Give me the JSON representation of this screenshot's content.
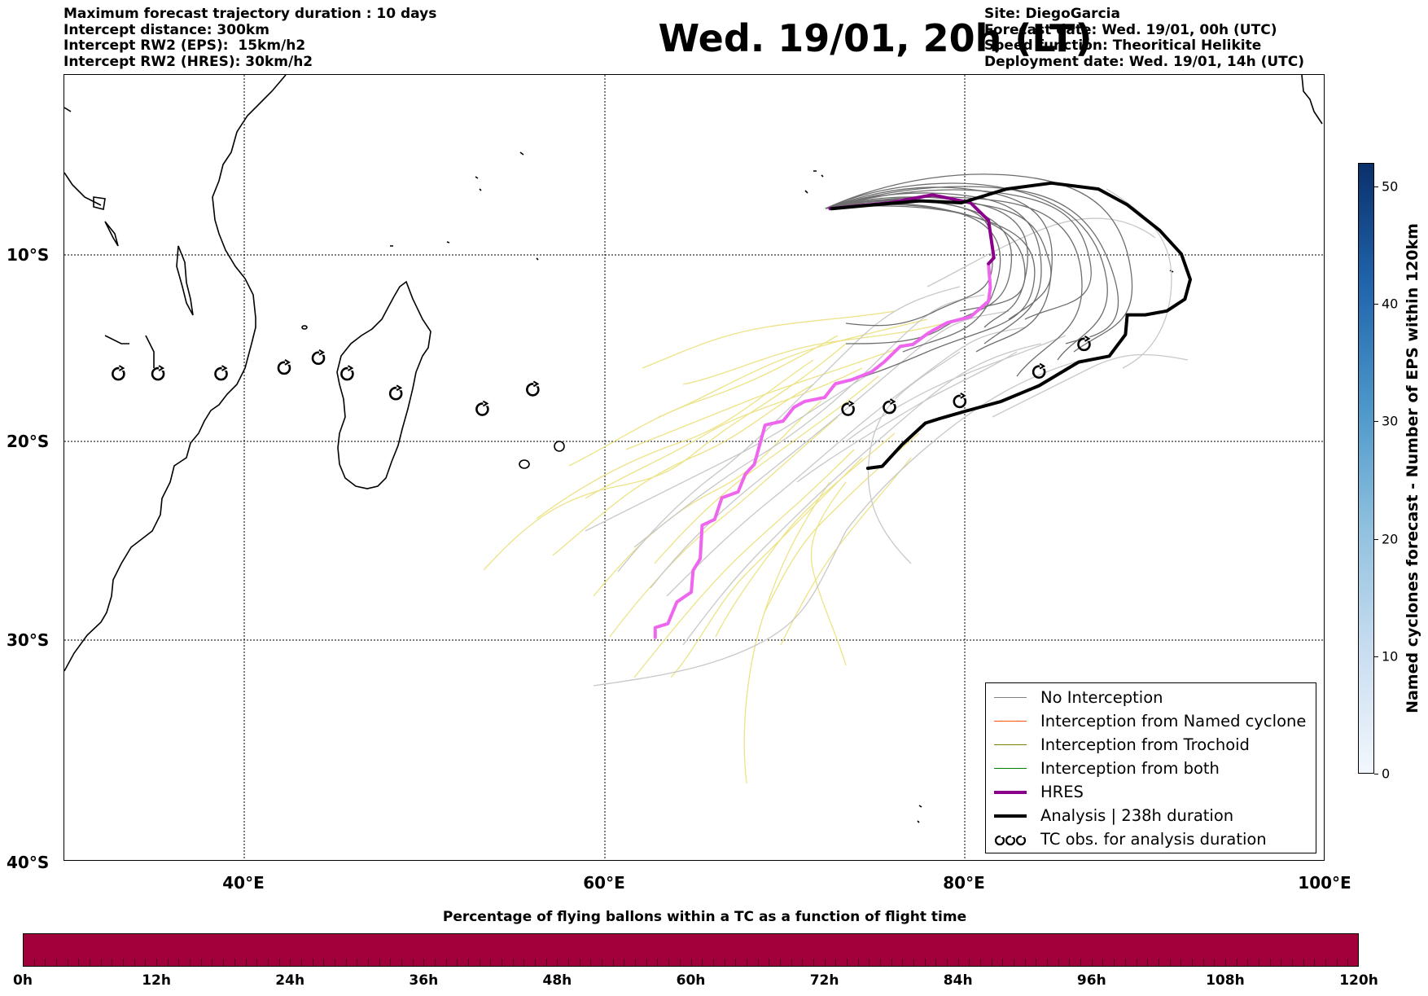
{
  "header": {
    "left_lines": [
      "Maximum forecast trajectory duration : 10 days",
      "Intercept distance: 300km",
      "Intercept RW2 (EPS):  15km/h2",
      "Intercept RW2 (HRES): 30km/h2"
    ],
    "title": "Wed. 19/01, 20h (LT)",
    "right_lines": [
      "Site: DiegoGarcia",
      "Forecast date: Wed. 19/01, 00h (UTC)",
      "Speed function: Theoritical Helikite",
      "Deployment date: Wed. 19/01, 14h (UTC)"
    ]
  },
  "map": {
    "extent": {
      "lon_min": 30,
      "lon_max": 100,
      "lat_min": -40,
      "lat_max": 0
    },
    "lat_labels": [
      "10°S",
      "20°S",
      "30°S",
      "40°S"
    ],
    "lon_labels": [
      "40°E",
      "60°E",
      "80°E",
      "100°E"
    ],
    "tc_observations": [
      {
        "lon": 33.0,
        "lat": -15.2
      },
      {
        "lon": 35.2,
        "lat": -15.2
      },
      {
        "lon": 38.7,
        "lat": -15.2
      },
      {
        "lon": 42.2,
        "lat": -14.9
      },
      {
        "lon": 44.1,
        "lat": -14.4
      },
      {
        "lon": 45.7,
        "lat": -15.2
      },
      {
        "lon": 48.4,
        "lat": -16.2
      },
      {
        "lon": 53.2,
        "lat": -17.0
      },
      {
        "lon": 56.0,
        "lat": -16.0
      },
      {
        "lon": 73.5,
        "lat": -17.0
      },
      {
        "lon": 75.8,
        "lat": -16.9
      },
      {
        "lon": 79.7,
        "lat": -16.6
      },
      {
        "lon": 84.1,
        "lat": -15.1
      },
      {
        "lon": 86.6,
        "lat": -13.7
      }
    ],
    "hres_track": [
      [
        62.8,
        -28.6
      ],
      [
        62.8,
        -28.1
      ],
      [
        63.5,
        -27.9
      ],
      [
        64.0,
        -26.8
      ],
      [
        64.8,
        -26.3
      ],
      [
        64.9,
        -25.2
      ],
      [
        65.3,
        -24.6
      ],
      [
        65.4,
        -22.9
      ],
      [
        66.1,
        -22.6
      ],
      [
        66.5,
        -21.5
      ],
      [
        67.4,
        -21.2
      ],
      [
        67.8,
        -20.3
      ],
      [
        68.3,
        -19.8
      ],
      [
        68.9,
        -17.8
      ],
      [
        69.9,
        -17.6
      ],
      [
        70.5,
        -16.9
      ],
      [
        71.1,
        -16.6
      ],
      [
        72.2,
        -16.4
      ],
      [
        72.8,
        -15.7
      ],
      [
        73.7,
        -15.5
      ],
      [
        74.8,
        -15.1
      ],
      [
        75.5,
        -14.6
      ],
      [
        76.4,
        -13.8
      ],
      [
        77.1,
        -13.7
      ],
      [
        78.0,
        -13.1
      ],
      [
        79.0,
        -12.6
      ],
      [
        80.3,
        -12.3
      ],
      [
        81.3,
        -11.5
      ],
      [
        81.4,
        -10.8
      ],
      [
        81.3,
        -9.6
      ],
      [
        81.6,
        -9.3
      ],
      [
        81.3,
        -7.4
      ],
      [
        80.3,
        -6.5
      ],
      [
        78.2,
        -6.1
      ],
      [
        75.8,
        -6.5
      ],
      [
        72.5,
        -6.8
      ]
    ],
    "analysis_track": [
      [
        74.6,
        -20.0
      ],
      [
        75.4,
        -19.9
      ],
      [
        76.5,
        -18.8
      ],
      [
        77.8,
        -17.7
      ],
      [
        78.5,
        -17.5
      ],
      [
        80.0,
        -17.1
      ],
      [
        82.0,
        -16.6
      ],
      [
        84.1,
        -15.8
      ],
      [
        86.3,
        -14.6
      ],
      [
        88.0,
        -14.3
      ],
      [
        88.9,
        -13.2
      ],
      [
        89.0,
        -12.2
      ],
      [
        90.0,
        -12.2
      ],
      [
        91.2,
        -12.0
      ],
      [
        92.2,
        -11.4
      ],
      [
        92.5,
        -10.4
      ],
      [
        92.0,
        -9.1
      ],
      [
        90.8,
        -7.9
      ],
      [
        89.0,
        -6.6
      ],
      [
        87.4,
        -5.8
      ],
      [
        84.8,
        -5.5
      ],
      [
        82.3,
        -5.8
      ],
      [
        79.8,
        -6.5
      ],
      [
        77.5,
        -6.4
      ],
      [
        75.0,
        -6.6
      ],
      [
        72.6,
        -6.8
      ]
    ]
  },
  "legend": {
    "items": [
      {
        "label": "No Interception",
        "color": "#808080",
        "width": 1.3
      },
      {
        "label": "Interception from Named cyclone",
        "color": "#ff5000",
        "width": 1.3
      },
      {
        "label": "Interception from Trochoid",
        "color": "#808000",
        "width": 1.3
      },
      {
        "label": "Interception from both",
        "color": "#008000",
        "width": 1.3
      },
      {
        "label": "HRES",
        "color": "#8b008b",
        "width": 4
      },
      {
        "label": "Analysis | 238h duration",
        "color": "#000000",
        "width": 4
      },
      {
        "label": "TC obs. for analysis duration",
        "color": "#000000",
        "width": 0
      }
    ]
  },
  "colorbar_right": {
    "label": "Named cyclones forecast - Number of EPS within 120km",
    "ticks": [
      "0",
      "10",
      "20",
      "30",
      "40",
      "50"
    ],
    "range": [
      0,
      52
    ]
  },
  "colorbar_bottom": {
    "title": "Percentage of flying ballons within a TC as a function of flight time",
    "ticks": [
      "0h",
      "12h",
      "24h",
      "36h",
      "48h",
      "60h",
      "72h",
      "84h",
      "96h",
      "108h",
      "120h"
    ],
    "color": "#a1003b"
  }
}
